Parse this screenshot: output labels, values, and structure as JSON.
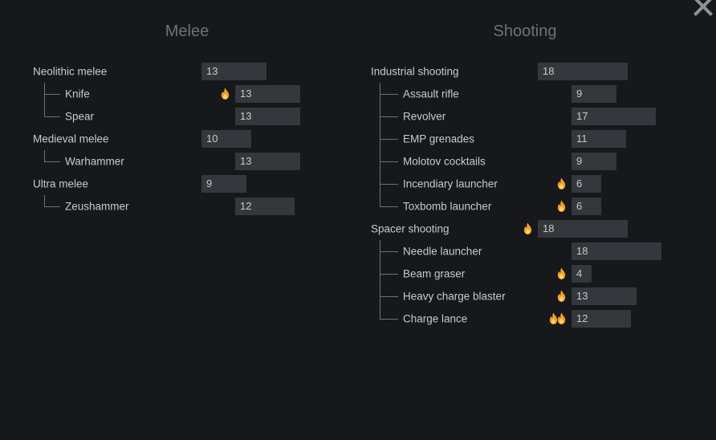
{
  "window": {
    "close_icon": "✕"
  },
  "colors": {
    "background": "#16181b",
    "bar": "#34373c",
    "text": "#c9cacb",
    "title": "#6e7276",
    "tree_line": "#6f7275",
    "close": "#8f9296",
    "flame_outer": "#f59e2b",
    "flame_inner": "#ffd45e"
  },
  "columns": [
    {
      "title": "Melee",
      "items": [
        {
          "label": "Neolithic melee",
          "value": 13,
          "depth": 0,
          "flames": 0,
          "last": false
        },
        {
          "label": "Knife",
          "value": 13,
          "depth": 1,
          "flames": 1,
          "last": false
        },
        {
          "label": "Spear",
          "value": 13,
          "depth": 1,
          "flames": 0,
          "last": true
        },
        {
          "label": "Medieval melee",
          "value": 10,
          "depth": 0,
          "flames": 0,
          "last": false
        },
        {
          "label": "Warhammer",
          "value": 13,
          "depth": 1,
          "flames": 0,
          "last": true
        },
        {
          "label": "Ultra melee",
          "value": 9,
          "depth": 0,
          "flames": 0,
          "last": false
        },
        {
          "label": "Zeushammer",
          "value": 12,
          "depth": 1,
          "flames": 0,
          "last": true
        }
      ]
    },
    {
      "title": "Shooting",
      "items": [
        {
          "label": "Industrial shooting",
          "value": 18,
          "depth": 0,
          "flames": 0,
          "last": false
        },
        {
          "label": "Assault rifle",
          "value": 9,
          "depth": 1,
          "flames": 0,
          "last": false
        },
        {
          "label": "Revolver",
          "value": 17,
          "depth": 1,
          "flames": 0,
          "last": false
        },
        {
          "label": "EMP grenades",
          "value": 11,
          "depth": 1,
          "flames": 0,
          "last": false
        },
        {
          "label": "Molotov cocktails",
          "value": 9,
          "depth": 1,
          "flames": 0,
          "last": false
        },
        {
          "label": "Incendiary launcher",
          "value": 6,
          "depth": 1,
          "flames": 1,
          "last": false
        },
        {
          "label": "Toxbomb launcher",
          "value": 6,
          "depth": 1,
          "flames": 1,
          "last": true
        },
        {
          "label": "Spacer shooting",
          "value": 18,
          "depth": 0,
          "flames": 1,
          "last": false
        },
        {
          "label": "Needle launcher",
          "value": 18,
          "depth": 1,
          "flames": 0,
          "last": false
        },
        {
          "label": "Beam graser",
          "value": 4,
          "depth": 1,
          "flames": 1,
          "last": false
        },
        {
          "label": "Heavy charge blaster",
          "value": 13,
          "depth": 1,
          "flames": 1,
          "last": false
        },
        {
          "label": "Charge lance",
          "value": 12,
          "depth": 1,
          "flames": 2,
          "last": true
        }
      ]
    }
  ]
}
